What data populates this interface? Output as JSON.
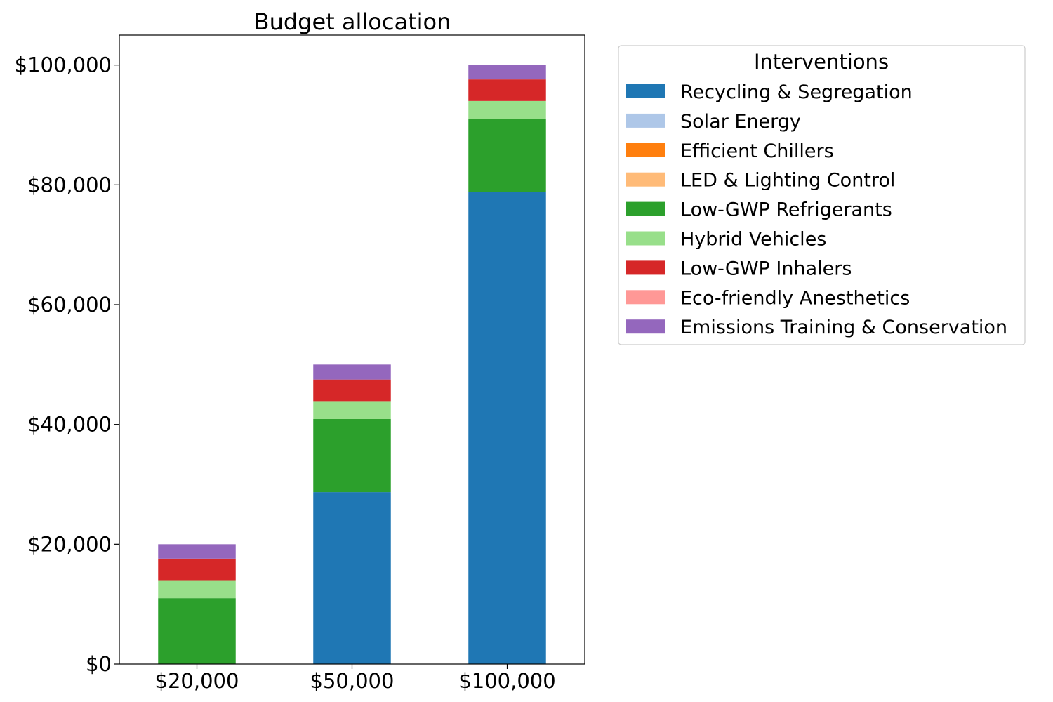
{
  "chart_data": {
    "type": "bar",
    "stacked": true,
    "title": "Budget allocation",
    "xlabel": "",
    "ylabel": "",
    "categories": [
      "$20,000",
      "$50,000",
      "$100,000"
    ],
    "ylim": [
      0,
      105000
    ],
    "yticks": [
      {
        "value": 0,
        "label": "$0"
      },
      {
        "value": 20000,
        "label": "$20,000"
      },
      {
        "value": 40000,
        "label": "$40,000"
      },
      {
        "value": 60000,
        "label": "$60,000"
      },
      {
        "value": 80000,
        "label": "$80,000"
      },
      {
        "value": 100000,
        "label": "$100,000"
      }
    ],
    "grid": false,
    "legend": {
      "title": "Interventions",
      "placement": "outside-top-right"
    },
    "series": [
      {
        "name": "Recycling & Segregation",
        "color": "#1f77b4",
        "values": [
          0,
          28700,
          78800
        ]
      },
      {
        "name": "Solar Energy",
        "color": "#aec7e8",
        "values": [
          0,
          0,
          0
        ]
      },
      {
        "name": "Efficient Chillers",
        "color": "#ff7f0e",
        "values": [
          0,
          0,
          0
        ]
      },
      {
        "name": "LED & Lighting Control",
        "color": "#ffbb78",
        "values": [
          0,
          0,
          0
        ]
      },
      {
        "name": "Low-GWP Refrigerants",
        "color": "#2ca02c",
        "values": [
          11000,
          12200,
          12200
        ]
      },
      {
        "name": "Hybrid Vehicles",
        "color": "#98df8a",
        "values": [
          3000,
          3000,
          3000
        ]
      },
      {
        "name": "Low-GWP Inhalers",
        "color": "#d62728",
        "values": [
          3600,
          3600,
          3600
        ]
      },
      {
        "name": "Eco-friendly Anesthetics",
        "color": "#ff9896",
        "values": [
          0,
          0,
          0
        ]
      },
      {
        "name": "Emissions Training & Conservation",
        "color": "#9467bd",
        "values": [
          2400,
          2500,
          2400
        ]
      }
    ]
  }
}
